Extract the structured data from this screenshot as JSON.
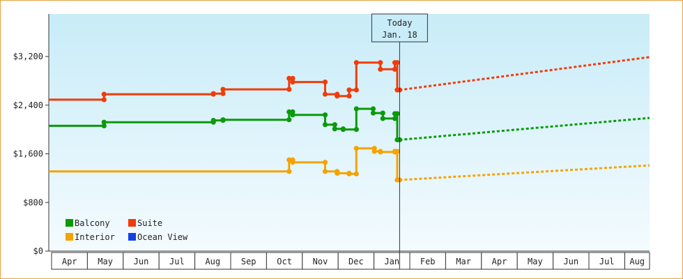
{
  "chart_data": {
    "type": "line",
    "title": "",
    "xlabel": "",
    "ylabel": "",
    "ylim": [
      0,
      3900
    ],
    "y_ticks": [
      {
        "value": 0,
        "label": "$0"
      },
      {
        "value": 800,
        "label": "$800"
      },
      {
        "value": 1600,
        "label": "$1,600"
      },
      {
        "value": 2400,
        "label": "$2,400"
      },
      {
        "value": 3200,
        "label": "$3,200"
      }
    ],
    "month_labels": [
      "Apr",
      "May",
      "Jun",
      "Jul",
      "Aug",
      "Sep",
      "Oct",
      "Nov",
      "Dec",
      "Jan",
      "Feb",
      "Mar",
      "Apr",
      "May",
      "Jun",
      "Jul",
      "Aug"
    ],
    "x_axis_note": "x = days since Apr 1 of first year; Jan 18 = day 292",
    "today": {
      "x": 292,
      "line1": "Today",
      "line2": "Jan. 18"
    },
    "legend": [
      {
        "name": "Balcony",
        "color": "#0a9a0a"
      },
      {
        "name": "Suite",
        "color": "#f03c0a"
      },
      {
        "name": "Interior",
        "color": "#f5a300"
      },
      {
        "name": "Ocean View",
        "color": "#1240e8"
      }
    ],
    "series": [
      {
        "name": "Suite",
        "color": "#f03c0a",
        "points": [
          [
            0,
            2490
          ],
          [
            46,
            2490
          ],
          [
            46,
            2580
          ],
          [
            137,
            2580
          ],
          [
            137,
            2590
          ],
          [
            145,
            2590
          ],
          [
            145,
            2660
          ],
          [
            200,
            2660
          ],
          [
            200,
            2840
          ],
          [
            203,
            2840
          ],
          [
            203,
            2780
          ],
          [
            230,
            2780
          ],
          [
            230,
            2580
          ],
          [
            240,
            2580
          ],
          [
            240,
            2550
          ],
          [
            250,
            2550
          ],
          [
            250,
            2650
          ],
          [
            256,
            2650
          ],
          [
            256,
            3100
          ],
          [
            276,
            3100
          ],
          [
            276,
            2990
          ],
          [
            288,
            2990
          ],
          [
            288,
            3100
          ],
          [
            290,
            3100
          ],
          [
            290,
            2650
          ],
          [
            292,
            2650
          ]
        ],
        "forecast": [
          [
            292,
            2650
          ],
          [
            500,
            3190
          ]
        ]
      },
      {
        "name": "Balcony",
        "color": "#0a9a0a",
        "points": [
          [
            0,
            2060
          ],
          [
            46,
            2060
          ],
          [
            46,
            2120
          ],
          [
            137,
            2120
          ],
          [
            137,
            2150
          ],
          [
            145,
            2150
          ],
          [
            145,
            2160
          ],
          [
            200,
            2160
          ],
          [
            200,
            2290
          ],
          [
            203,
            2290
          ],
          [
            203,
            2240
          ],
          [
            230,
            2240
          ],
          [
            230,
            2080
          ],
          [
            238,
            2080
          ],
          [
            238,
            2010
          ],
          [
            245,
            2010
          ],
          [
            245,
            2000
          ],
          [
            256,
            2000
          ],
          [
            256,
            2340
          ],
          [
            270,
            2340
          ],
          [
            270,
            2270
          ],
          [
            278,
            2270
          ],
          [
            278,
            2180
          ],
          [
            288,
            2180
          ],
          [
            288,
            2260
          ],
          [
            290,
            2260
          ],
          [
            290,
            1830
          ],
          [
            292,
            1830
          ]
        ],
        "forecast": [
          [
            292,
            1830
          ],
          [
            500,
            2190
          ]
        ]
      },
      {
        "name": "Interior",
        "color": "#f5a300",
        "points": [
          [
            0,
            1310
          ],
          [
            200,
            1310
          ],
          [
            200,
            1500
          ],
          [
            203,
            1500
          ],
          [
            203,
            1460
          ],
          [
            230,
            1460
          ],
          [
            230,
            1310
          ],
          [
            240,
            1310
          ],
          [
            240,
            1280
          ],
          [
            250,
            1280
          ],
          [
            250,
            1270
          ],
          [
            256,
            1270
          ],
          [
            256,
            1690
          ],
          [
            271,
            1690
          ],
          [
            271,
            1640
          ],
          [
            276,
            1640
          ],
          [
            276,
            1630
          ],
          [
            288,
            1630
          ],
          [
            288,
            1640
          ],
          [
            290,
            1640
          ],
          [
            290,
            1170
          ],
          [
            292,
            1170
          ]
        ],
        "forecast": [
          [
            292,
            1170
          ],
          [
            500,
            1410
          ]
        ]
      },
      {
        "name": "Ocean View",
        "color": "#1240e8",
        "points": [],
        "forecast": []
      }
    ]
  }
}
